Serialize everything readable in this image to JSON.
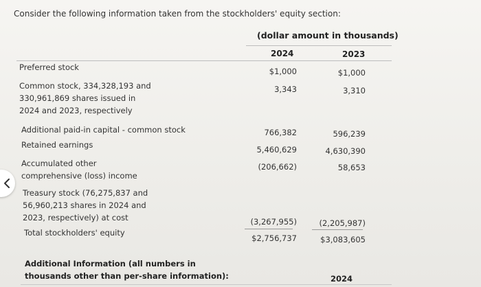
{
  "intro": "Consider the following information taken from the stockholders' equity section:",
  "unit_header": "(dollar amount in thousands)",
  "years": [
    "2024",
    "2023"
  ],
  "rows": [
    {
      "label": "Preferred stock",
      "v2024": "$1,000",
      "v2023": "$1,000"
    },
    {
      "label": "Common stock, 334,328,193 and 330,961,869 shares issued in 2024 and 2023, respectively",
      "v2024": "3,343",
      "v2023": "3,310"
    },
    {
      "label": "Additional paid-in capital - common stock",
      "v2024": "766,382",
      "v2023": "596,239"
    },
    {
      "label": "Retained earnings",
      "v2024": "5,460,629",
      "v2023": "4,630,390"
    },
    {
      "label": "Accumulated other comprehensive (loss) income",
      "v2024": "(206,662)",
      "v2023": "58,653"
    },
    {
      "label": "Treasury stock (76,275,837 and 56,960,213 shares in 2024 and 2023, respectively) at cost",
      "v2024": "(3,267,955)",
      "v2023": "(2,205,987)"
    },
    {
      "label": "Total stockholders' equity",
      "v2024": "$2,756,737",
      "v2023": "$3,083,605"
    }
  ],
  "additional_info": "Additional Information (all numbers in thousands other than per-share information):",
  "additional_year": "2024",
  "nav": {
    "back_icon": "chevron-left-icon"
  }
}
